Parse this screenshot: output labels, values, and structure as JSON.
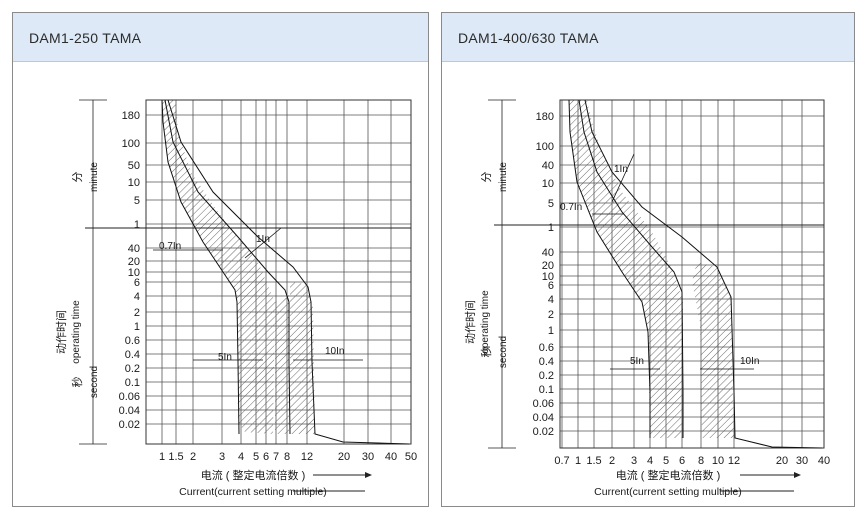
{
  "chart_data": [
    {
      "type": "line",
      "title": "DAM1-250 TAMA",
      "y_ticks_min": [
        "180",
        "100",
        "50",
        "10",
        "5",
        "1"
      ],
      "y_ticks_sec": [
        "40",
        "20",
        "10",
        "6",
        "4",
        "2",
        "1",
        "0.6",
        "0.4",
        "0.2",
        "0.1",
        "0.06",
        "0.04",
        "0.02"
      ],
      "x_ticks": [
        "1",
        "1.5",
        "2",
        "3",
        "4",
        "5",
        "6",
        "7",
        "8",
        "12",
        "20",
        "30",
        "40",
        "50"
      ],
      "label_min_cn": "分",
      "label_min_en": "minute",
      "label_sec_cn": "秒",
      "label_sec_en": "second",
      "label_time_cn": "动作时间",
      "label_time_en": "operating time",
      "xlabel_cn": "电流 ( 整定电流倍数 )",
      "xlabel_en": "Current(current setting multiple)",
      "annotations": [
        "0.7In",
        "1In",
        "5In",
        "10In"
      ],
      "series": [
        {
          "values": [
            [
              1.05,
              "180 min"
            ],
            [
              1.2,
              "50 min"
            ],
            [
              2,
              "1 min"
            ],
            [
              3,
              "20 s"
            ],
            [
              4.2,
              "2 s"
            ],
            [
              4.3,
              "0.03 s"
            ]
          ]
        },
        {
          "values": [
            [
              1.35,
              "180 min"
            ],
            [
              1.7,
              "50 min"
            ],
            [
              3,
              "1 min"
            ],
            [
              5,
              "30 s"
            ],
            [
              8,
              "4 s"
            ],
            [
              8.2,
              "0.02 s"
            ]
          ]
        },
        {
          "values": [
            [
              1.6,
              "180 min"
            ],
            [
              2.1,
              "50 min"
            ],
            [
              4,
              "1 min"
            ],
            [
              6,
              "30 s"
            ],
            [
              10.5,
              "4 s"
            ],
            [
              10.7,
              "0.02 s"
            ]
          ]
        }
      ]
    },
    {
      "type": "line",
      "title": "DAM1-400/630 TAMA",
      "y_ticks_min": [
        "180",
        "100",
        "40",
        "10",
        "5",
        "1"
      ],
      "y_ticks_sec": [
        "40",
        "20",
        "10",
        "6",
        "4",
        "2",
        "1",
        "0.6",
        "0.4",
        "0.2",
        "0.1",
        "0.06",
        "0.04",
        "0.02"
      ],
      "x_ticks": [
        "0.7",
        "1",
        "1.5",
        "2",
        "3",
        "4",
        "5",
        "6",
        "8",
        "10",
        "12",
        "20",
        "30",
        "40"
      ],
      "label_min_cn": "分",
      "label_min_en": "minute",
      "label_sec_cn": "秒",
      "label_sec_en": "second",
      "label_time_cn": "动作时间",
      "label_time_en": "operating time",
      "xlabel_cn": "电流 ( 整定电流倍数 )",
      "xlabel_en": "Current(current setting multiple)",
      "annotations": [
        "0.7In",
        "1In",
        "5In",
        "10In"
      ],
      "series": [
        {
          "values": [
            [
              0.9,
              "180 min"
            ],
            [
              1.2,
              "5 min"
            ],
            [
              2,
              "40 s"
            ],
            [
              4,
              "2 s"
            ],
            [
              4.1,
              "0.02 s"
            ]
          ]
        },
        {
          "values": [
            [
              1.4,
              "180 min"
            ],
            [
              2,
              "5 min"
            ],
            [
              4,
              "40 s"
            ],
            [
              6,
              "4 s"
            ],
            [
              6.2,
              "0.02 s"
            ]
          ]
        },
        {
          "values": [
            [
              1.6,
              "180 min"
            ],
            [
              2.4,
              "5 min"
            ],
            [
              6,
              "40 s"
            ],
            [
              12,
              "3 s"
            ],
            [
              12.2,
              "0.02 s"
            ]
          ]
        }
      ]
    }
  ]
}
